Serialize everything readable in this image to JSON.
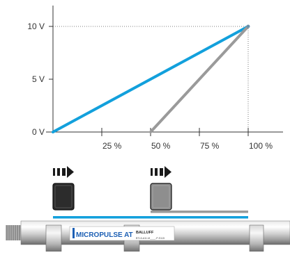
{
  "chart_data": {
    "type": "line",
    "x_tick_labels": [
      "25 %",
      "50 %",
      "75 %",
      "100 %"
    ],
    "y_tick_labels": [
      "0 V",
      "5 V",
      "10 V"
    ],
    "xlim": [
      0,
      100
    ],
    "ylim": [
      0,
      10
    ],
    "x_ticks": [
      25,
      50,
      75,
      100
    ],
    "y_ticks": [
      0,
      5,
      10
    ],
    "grid": false,
    "reference_lines": [
      {
        "axis": "x",
        "value": 100
      },
      {
        "axis": "y",
        "value": 10
      }
    ],
    "series": [
      {
        "color": "#12a0dc",
        "points": [
          [
            0,
            0
          ],
          [
            100,
            10
          ]
        ]
      },
      {
        "color": "#9a9a9a",
        "points": [
          [
            50,
            0
          ],
          [
            100,
            10
          ]
        ]
      }
    ]
  },
  "range_bars": [
    {
      "color": "#12a0dc",
      "from": 0,
      "to": 100
    },
    {
      "color": "#9a9a9a",
      "from": 50,
      "to": 100
    }
  ],
  "magnets": [
    {
      "position": 0,
      "fill": "#2c2c2c",
      "arrow": "#1a1a1a"
    },
    {
      "position": 50,
      "fill": "#8e8e8e",
      "arrow": "#1a1a1a"
    }
  ],
  "sensor": {
    "logo": "MICROPULSE AT",
    "brand": "BALLUFF",
    "type_code": "BTL5-A11-M____-P-S115"
  },
  "colors": {
    "axis": "#333333",
    "blue": "#12a0dc",
    "grey": "#9a9a9a",
    "text": "#333333"
  }
}
